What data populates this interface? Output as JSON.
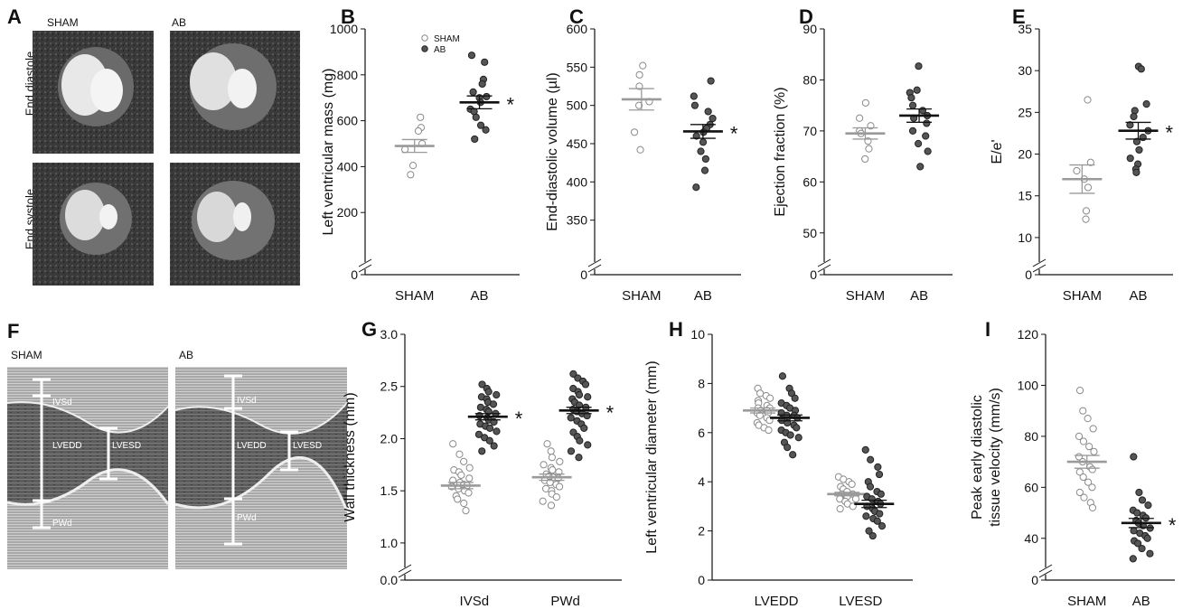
{
  "colors": {
    "sham_fill": "#ffffff",
    "sham_stroke": "#8a8a8a",
    "sham_mean": "#9a9a9a",
    "ab_fill": "#555555",
    "ab_stroke": "#222222",
    "ab_mean": "#111111",
    "axis": "#111111",
    "mri_bg": "#3a3a3a",
    "echo_bg": "#6a6a6a"
  },
  "images": {
    "panel_A": {
      "letter": "A",
      "col_labels": [
        "SHAM",
        "AB"
      ],
      "row_labels": [
        "End diastole",
        "End systole"
      ]
    },
    "panel_F": {
      "letter": "F",
      "col_labels": [
        "SHAM",
        "AB"
      ],
      "labels": [
        "IVSd",
        "LVEDD",
        "LVESD",
        "PWd"
      ]
    }
  },
  "chart_data": [
    {
      "letter": "B",
      "type": "scatter",
      "ylabel": "Left ventricular mass (mg)",
      "yticks": [
        0,
        200,
        400,
        600,
        800,
        1000
      ],
      "ylim": [
        0,
        1000
      ],
      "axis_break": true,
      "categories": [
        "SHAM",
        "AB"
      ],
      "legend": [
        "SHAM",
        "AB"
      ],
      "series": [
        {
          "name": "SHAM",
          "style": "sham",
          "category": "SHAM",
          "values": [
            615,
            570,
            555,
            500,
            475,
            405,
            365
          ],
          "mean": 490,
          "sem": 28
        },
        {
          "name": "AB",
          "style": "ab",
          "category": "AB",
          "values": [
            885,
            855,
            780,
            760,
            725,
            705,
            700,
            680,
            650,
            640,
            615,
            580,
            560,
            520
          ],
          "mean": 680,
          "sem": 28,
          "star": "*"
        }
      ]
    },
    {
      "letter": "C",
      "type": "scatter",
      "ylabel": "End-diastolic volume (µl)",
      "yticks": [
        0,
        350,
        400,
        450,
        500,
        550,
        600
      ],
      "ylim": [
        300,
        600
      ],
      "axis_break": true,
      "categories": [
        "SHAM",
        "AB"
      ],
      "series": [
        {
          "style": "sham",
          "category": "SHAM",
          "values": [
            552,
            540,
            525,
            505,
            500,
            465,
            442
          ],
          "mean": 508,
          "sem": 14
        },
        {
          "style": "ab",
          "category": "AB",
          "values": [
            532,
            512,
            500,
            492,
            483,
            475,
            470,
            465,
            460,
            452,
            440,
            430,
            415,
            393
          ],
          "mean": 466,
          "sem": 9,
          "star": "*"
        }
      ]
    },
    {
      "letter": "D",
      "type": "scatter",
      "ylabel": "Ejection fraction (%)",
      "yticks": [
        0,
        50,
        60,
        70,
        80,
        90
      ],
      "ylim": [
        45,
        90
      ],
      "axis_break": true,
      "categories": [
        "SHAM",
        "AB"
      ],
      "series": [
        {
          "style": "sham",
          "category": "SHAM",
          "values": [
            75.5,
            72.5,
            71,
            70,
            69.5,
            68,
            66.5,
            64.5
          ],
          "mean": 69.5,
          "sem": 1.1
        },
        {
          "style": "ab",
          "category": "AB",
          "values": [
            82.7,
            78,
            77.5,
            76.5,
            75,
            74,
            73,
            72.5,
            71.5,
            70,
            69,
            67.5,
            66,
            63
          ],
          "mean": 73,
          "sem": 1.3
        }
      ]
    },
    {
      "letter": "E",
      "type": "scatter",
      "ylabel": "E/e'",
      "yticks": [
        0,
        10,
        15,
        20,
        25,
        30,
        35
      ],
      "ylim": [
        7.5,
        35
      ],
      "axis_break": true,
      "categories": [
        "SHAM",
        "AB"
      ],
      "series": [
        {
          "style": "sham",
          "category": "SHAM",
          "values": [
            26.5,
            19,
            18,
            17,
            16,
            13.2,
            12.2
          ],
          "mean": 17,
          "sem": 1.7
        },
        {
          "style": "ab",
          "category": "AB",
          "values": [
            30.5,
            30.2,
            26,
            25.2,
            24.5,
            23.5,
            22.8,
            22,
            21.5,
            20.5,
            19.5,
            18.8,
            18.2,
            17.8
          ],
          "mean": 22.8,
          "sem": 1,
          "star": "*"
        }
      ]
    },
    {
      "letter": "G",
      "type": "scatter",
      "ylabel": "Wall thickness (mm)",
      "yticks": [
        0.0,
        1.0,
        1.5,
        2.0,
        2.5,
        3.0
      ],
      "ytick_labels": [
        "0.0",
        "1.0",
        "1.5",
        "2.0",
        "2.5",
        "3.0"
      ],
      "ylim": [
        0.8,
        3.0
      ],
      "axis_break": true,
      "categories": [
        "IVSd",
        "PWd"
      ],
      "series": [
        {
          "style": "sham",
          "category": "IVSd",
          "offset": -0.5,
          "values": [
            1.95,
            1.85,
            1.78,
            1.72,
            1.7,
            1.68,
            1.65,
            1.62,
            1.6,
            1.58,
            1.56,
            1.55,
            1.54,
            1.52,
            1.5,
            1.48,
            1.45,
            1.42,
            1.38,
            1.31
          ],
          "mean": 1.55,
          "sem": 0.03
        },
        {
          "style": "ab",
          "category": "IVSd",
          "offset": 0.5,
          "values": [
            2.52,
            2.48,
            2.45,
            2.42,
            2.4,
            2.38,
            2.35,
            2.33,
            2.3,
            2.28,
            2.26,
            2.24,
            2.22,
            2.2,
            2.18,
            2.16,
            2.14,
            2.12,
            2.1,
            2.07,
            2.04,
            2.01,
            1.98,
            1.93,
            1.88
          ],
          "mean": 2.21,
          "sem": 0.03,
          "star": "*"
        },
        {
          "style": "sham",
          "category": "PWd",
          "offset": -0.5,
          "values": [
            1.95,
            1.88,
            1.82,
            1.78,
            1.75,
            1.72,
            1.7,
            1.68,
            1.66,
            1.64,
            1.63,
            1.62,
            1.6,
            1.58,
            1.56,
            1.54,
            1.52,
            1.5,
            1.47,
            1.44,
            1.4,
            1.36
          ],
          "mean": 1.63,
          "sem": 0.03
        },
        {
          "style": "ab",
          "category": "PWd",
          "offset": 0.5,
          "values": [
            2.62,
            2.58,
            2.55,
            2.52,
            2.48,
            2.45,
            2.42,
            2.4,
            2.38,
            2.35,
            2.32,
            2.3,
            2.28,
            2.26,
            2.24,
            2.22,
            2.2,
            2.17,
            2.14,
            2.1,
            2.06,
            2.02,
            1.98,
            1.94,
            1.88,
            1.82
          ],
          "mean": 2.27,
          "sem": 0.03,
          "star": "*"
        }
      ]
    },
    {
      "letter": "H",
      "type": "scatter",
      "ylabel": "Left ventricular diameter (mm)",
      "yticks": [
        0,
        2,
        4,
        6,
        8,
        10
      ],
      "ylim": [
        0,
        10
      ],
      "axis_break": false,
      "categories": [
        "LVEDD",
        "LVESD"
      ],
      "series": [
        {
          "style": "sham",
          "category": "LVEDD",
          "offset": -0.5,
          "values": [
            7.8,
            7.6,
            7.5,
            7.4,
            7.3,
            7.2,
            7.1,
            7.0,
            7.0,
            6.9,
            6.9,
            6.8,
            6.8,
            6.7,
            6.6,
            6.5,
            6.4,
            6.3,
            6.2,
            6.1
          ],
          "mean": 6.9,
          "sem": 0.1
        },
        {
          "style": "ab",
          "category": "LVEDD",
          "offset": 0.5,
          "values": [
            8.3,
            7.8,
            7.6,
            7.4,
            7.2,
            7.1,
            7.0,
            6.9,
            6.8,
            6.7,
            6.7,
            6.6,
            6.5,
            6.4,
            6.3,
            6.2,
            6.1,
            6.0,
            5.9,
            5.8,
            5.6,
            5.4,
            5.1
          ],
          "mean": 6.6,
          "sem": 0.12
        },
        {
          "style": "sham",
          "category": "LVESD",
          "offset": -0.5,
          "values": [
            4.2,
            4.1,
            4.0,
            3.9,
            3.8,
            3.7,
            3.6,
            3.5,
            3.5,
            3.4,
            3.4,
            3.3,
            3.3,
            3.2,
            3.1,
            3.0,
            2.9
          ],
          "mean": 3.5,
          "sem": 0.07
        },
        {
          "style": "ab",
          "category": "LVESD",
          "offset": 0.5,
          "values": [
            5.3,
            4.9,
            4.6,
            4.3,
            4.0,
            3.8,
            3.6,
            3.5,
            3.4,
            3.3,
            3.2,
            3.1,
            3.0,
            2.9,
            2.8,
            2.7,
            2.6,
            2.5,
            2.4,
            2.2,
            2.0,
            1.8
          ],
          "mean": 3.1,
          "sem": 0.15
        }
      ]
    },
    {
      "letter": "I",
      "type": "scatter",
      "ylabel": "Peak early diastolic tissue velocity (mm/s)",
      "ylabel_lines": [
        "Peak early diastolic",
        "tissue velocity (mm/s)"
      ],
      "yticks": [
        0,
        40,
        60,
        80,
        100,
        120
      ],
      "ylim": [
        30,
        120
      ],
      "axis_break": true,
      "categories": [
        "SHAM",
        "AB"
      ],
      "series": [
        {
          "style": "sham",
          "category": "SHAM",
          "values": [
            98,
            90,
            87,
            83,
            80,
            78,
            76,
            74,
            72,
            70,
            68,
            67,
            66,
            64,
            62,
            60,
            58,
            56,
            54,
            52
          ],
          "mean": 70,
          "sem": 2.5
        },
        {
          "style": "ab",
          "category": "AB",
          "values": [
            72,
            58,
            55,
            53,
            51,
            50,
            49,
            48,
            47,
            46,
            45,
            44,
            43,
            42,
            41,
            40,
            39,
            38,
            36,
            34,
            32
          ],
          "mean": 46,
          "sem": 1.8,
          "star": "*"
        }
      ]
    }
  ]
}
